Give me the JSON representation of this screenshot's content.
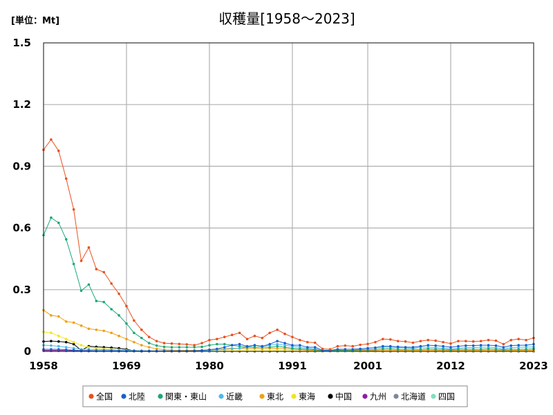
{
  "chart_data": {
    "type": "line",
    "title": "収穫量[1958～2023]",
    "unit_label": "[単位：Mt]",
    "xlabel": "",
    "ylabel": "",
    "xlim": [
      1958,
      2023
    ],
    "ylim": [
      0,
      1.5
    ],
    "x_ticks": [
      "1958",
      "1969",
      "1980",
      "1991",
      "2001",
      "2012",
      "2023"
    ],
    "x_tick_values": [
      1958,
      1969,
      1980,
      1991,
      2001,
      2012,
      2023
    ],
    "y_ticks": [
      "0",
      "0.3",
      "0.6",
      "0.9",
      "1.2",
      "1.5"
    ],
    "y_tick_values": [
      0,
      0.3,
      0.6,
      0.9,
      1.2,
      1.5
    ],
    "grid": true,
    "legend_position": "bottom",
    "series": [
      {
        "name": "全国",
        "color": "#e8501c",
        "values": [
          0.98,
          1.03,
          0.975,
          0.84,
          0.69,
          0.44,
          0.505,
          0.4,
          0.385,
          0.33,
          0.28,
          0.22,
          0.15,
          0.105,
          0.07,
          0.05,
          0.04,
          0.038,
          0.036,
          0.034,
          0.03,
          0.04,
          0.055,
          0.06,
          0.07,
          0.08,
          0.09,
          0.06,
          0.075,
          0.065,
          0.09,
          0.105,
          0.085,
          0.07,
          0.055,
          0.045,
          0.042,
          0.012,
          0.01,
          0.025,
          0.028,
          0.025,
          0.032,
          0.036,
          0.045,
          0.06,
          0.058,
          0.05,
          0.048,
          0.042,
          0.05,
          0.055,
          0.052,
          0.045,
          0.038,
          0.05,
          0.05,
          0.048,
          0.05,
          0.055,
          0.052,
          0.035,
          0.055,
          0.06,
          0.055,
          0.065
        ]
      },
      {
        "name": "北陸",
        "color": "#1a5fd0",
        "values": [
          0.01,
          0.01,
          0.01,
          0.008,
          0.006,
          0.004,
          0.004,
          0.003,
          0.003,
          0.003,
          0.002,
          0.002,
          0.002,
          0.002,
          0.002,
          0.002,
          0.002,
          0.002,
          0.002,
          0.002,
          0.003,
          0.005,
          0.008,
          0.012,
          0.02,
          0.03,
          0.035,
          0.025,
          0.03,
          0.025,
          0.035,
          0.05,
          0.04,
          0.03,
          0.03,
          0.02,
          0.02,
          0.005,
          0.005,
          0.01,
          0.01,
          0.01,
          0.012,
          0.015,
          0.018,
          0.025,
          0.025,
          0.022,
          0.02,
          0.02,
          0.025,
          0.03,
          0.028,
          0.025,
          0.02,
          0.025,
          0.028,
          0.028,
          0.03,
          0.03,
          0.028,
          0.02,
          0.028,
          0.03,
          0.03,
          0.035
        ]
      },
      {
        "name": "関東・東山",
        "color": "#1aa878",
        "values": [
          0.565,
          0.65,
          0.625,
          0.545,
          0.425,
          0.295,
          0.325,
          0.245,
          0.24,
          0.205,
          0.175,
          0.135,
          0.09,
          0.065,
          0.04,
          0.028,
          0.022,
          0.02,
          0.02,
          0.02,
          0.02,
          0.022,
          0.03,
          0.035,
          0.035,
          0.03,
          0.025,
          0.02,
          0.02,
          0.02,
          0.02,
          0.025,
          0.02,
          0.015,
          0.012,
          0.01,
          0.008,
          0.003,
          0.003,
          0.005,
          0.005,
          0.005,
          0.008,
          0.008,
          0.01,
          0.012,
          0.012,
          0.01,
          0.01,
          0.01,
          0.01,
          0.012,
          0.01,
          0.01,
          0.008,
          0.01,
          0.01,
          0.01,
          0.01,
          0.012,
          0.01,
          0.008,
          0.01,
          0.01,
          0.01,
          0.012
        ]
      },
      {
        "name": "近畿",
        "color": "#4fb8ec",
        "values": [
          0.03,
          0.028,
          0.025,
          0.02,
          0.015,
          0.01,
          0.01,
          0.008,
          0.008,
          0.007,
          0.006,
          0.005,
          0.004,
          0.003,
          0.003,
          0.002,
          0.002,
          0.002,
          0.002,
          0.002,
          0.002,
          0.003,
          0.005,
          0.008,
          0.01,
          0.012,
          0.015,
          0.02,
          0.03,
          0.025,
          0.03,
          0.035,
          0.03,
          0.025,
          0.02,
          0.015,
          0.012,
          0.003,
          0.003,
          0.008,
          0.01,
          0.01,
          0.012,
          0.015,
          0.018,
          0.02,
          0.02,
          0.018,
          0.018,
          0.015,
          0.02,
          0.02,
          0.018,
          0.015,
          0.012,
          0.015,
          0.018,
          0.018,
          0.02,
          0.02,
          0.018,
          0.012,
          0.018,
          0.02,
          0.02,
          0.022
        ]
      },
      {
        "name": "東北",
        "color": "#f0a010",
        "values": [
          0.2,
          0.175,
          0.17,
          0.145,
          0.14,
          0.125,
          0.11,
          0.105,
          0.1,
          0.09,
          0.075,
          0.06,
          0.045,
          0.03,
          0.02,
          0.012,
          0.008,
          0.006,
          0.005,
          0.005,
          0.005,
          0.005,
          0.008,
          0.01,
          0.012,
          0.015,
          0.015,
          0.012,
          0.015,
          0.012,
          0.015,
          0.015,
          0.012,
          0.01,
          0.008,
          0.006,
          0.005,
          0.002,
          0.002,
          0.003,
          0.003,
          0.003,
          0.004,
          0.004,
          0.005,
          0.006,
          0.006,
          0.005,
          0.005,
          0.005,
          0.005,
          0.006,
          0.005,
          0.005,
          0.004,
          0.005,
          0.005,
          0.005,
          0.005,
          0.006,
          0.005,
          0.004,
          0.005,
          0.005,
          0.005,
          0.006
        ]
      },
      {
        "name": "東海",
        "color": "#f4e41a",
        "values": [
          0.095,
          0.09,
          0.075,
          0.06,
          0.045,
          0.03,
          0.02,
          0.015,
          0.012,
          0.01,
          0.008,
          0.006,
          0.004,
          0.003,
          0.002,
          0.002,
          0.002,
          0.002,
          0.002,
          0.002,
          0.002,
          0.002,
          0.002,
          0.002,
          0.003,
          0.003,
          0.003,
          0.003,
          0.003,
          0.003,
          0.003,
          0.003,
          0.003,
          0.003,
          0.002,
          0.002,
          0.002,
          0.001,
          0.001,
          0.001,
          0.001,
          0.001,
          0.001,
          0.001,
          0.001,
          0.002,
          0.002,
          0.002,
          0.002,
          0.002,
          0.002,
          0.002,
          0.002,
          0.002,
          0.001,
          0.002,
          0.002,
          0.002,
          0.002,
          0.002,
          0.002,
          0.001,
          0.002,
          0.002,
          0.002,
          0.002
        ]
      },
      {
        "name": "中国",
        "color": "#000000",
        "values": [
          0.048,
          0.05,
          0.048,
          0.045,
          0.035,
          0.005,
          0.025,
          0.022,
          0.02,
          0.018,
          0.015,
          0.01,
          0.003,
          0.001,
          0.001,
          0.001,
          0.001,
          0.001,
          0.001,
          0.001,
          0.001,
          0.001,
          0.001,
          0.001,
          0.001,
          0.001,
          0.001,
          0.001,
          0.001,
          0.001,
          0.001,
          0.001,
          0.001,
          0.001,
          0.001,
          0.001,
          0.001,
          0.001,
          0.001,
          0.001,
          0.001,
          0.001,
          0.001,
          0.001,
          0.001,
          0.001,
          0.001,
          0.001,
          0.001,
          0.001,
          0.001,
          0.001,
          0.001,
          0.001,
          0.001,
          0.001,
          0.001,
          0.001,
          0.001,
          0.001,
          0.001,
          0.001,
          0.001,
          0.001,
          0.001,
          0.001
        ]
      },
      {
        "name": "九州",
        "color": "#8a1fa0",
        "values": [
          0.005,
          0.005,
          0.005,
          0.004,
          0.003,
          0.002,
          0.002,
          0.002,
          0.002,
          0.002,
          0.001,
          0.001,
          0.001,
          0.001,
          0.001,
          0.001,
          0.001,
          0.001,
          0.001,
          0.001,
          0.001,
          0.001,
          0.001,
          0.001,
          0.001,
          0.001,
          0.001,
          0.001,
          0.001,
          0.001,
          0.001,
          0.001,
          0.001,
          0.001,
          0.001,
          0.001,
          0.001,
          0.001,
          0.001,
          0.001,
          0.001,
          0.001,
          0.001,
          0.001,
          0.001,
          0.001,
          0.001,
          0.001,
          0.001,
          0.001,
          0.001,
          0.001,
          0.001,
          0.001,
          0.001,
          0.001,
          0.001,
          0.001,
          0.001,
          0.001,
          0.001,
          0.001,
          0.001,
          0.001,
          0.001,
          0.001
        ]
      },
      {
        "name": "北海道",
        "color": "#7a8898",
        "values": [
          0.002,
          0.002,
          0.002,
          0.002,
          0.002,
          0.001,
          0.001,
          0.001,
          0.001,
          0.001,
          0.001,
          0.001,
          0.001,
          0.001,
          0.001,
          0.001,
          0.001,
          0.001,
          0.001,
          0.001,
          0.001,
          0.001,
          0.001,
          0.001,
          0.001,
          0.001,
          0.001,
          0.001,
          0.001,
          0.001,
          0.001,
          0.001,
          0.001,
          0.001,
          0.001,
          0.001,
          0.001,
          0.001,
          0.001,
          0.001,
          0.001,
          0.001,
          0.001,
          0.001,
          0.001,
          0.001,
          0.001,
          0.001,
          0.001,
          0.001,
          0.001,
          0.001,
          0.001,
          0.001,
          0.001,
          0.001,
          0.001,
          0.001,
          0.001,
          0.001,
          0.001,
          0.001,
          0.001,
          0.001,
          0.001,
          0.001
        ]
      },
      {
        "name": "四国",
        "color": "#7fe0c0",
        "values": [
          0.004,
          0.004,
          0.004,
          0.003,
          0.003,
          0.002,
          0.002,
          0.002,
          0.002,
          0.002,
          0.001,
          0.001,
          0.001,
          0.001,
          0.001,
          0.001,
          0.001,
          0.001,
          0.001,
          0.001,
          0.001,
          0.001,
          0.001,
          0.001,
          0.001,
          0.001,
          0.001,
          0.001,
          0.001,
          0.001,
          0.001,
          0.001,
          0.001,
          0.001,
          0.001,
          0.001,
          0.001,
          0.001,
          0.001,
          0.001,
          0.001,
          0.001,
          0.001,
          0.001,
          0.001,
          0.001,
          0.001,
          0.001,
          0.001,
          0.001,
          0.001,
          0.001,
          0.001,
          0.001,
          0.001,
          0.001,
          0.001,
          0.001,
          0.001,
          0.001,
          0.001,
          0.001,
          0.001,
          0.001,
          0.001,
          0.001
        ]
      }
    ]
  }
}
